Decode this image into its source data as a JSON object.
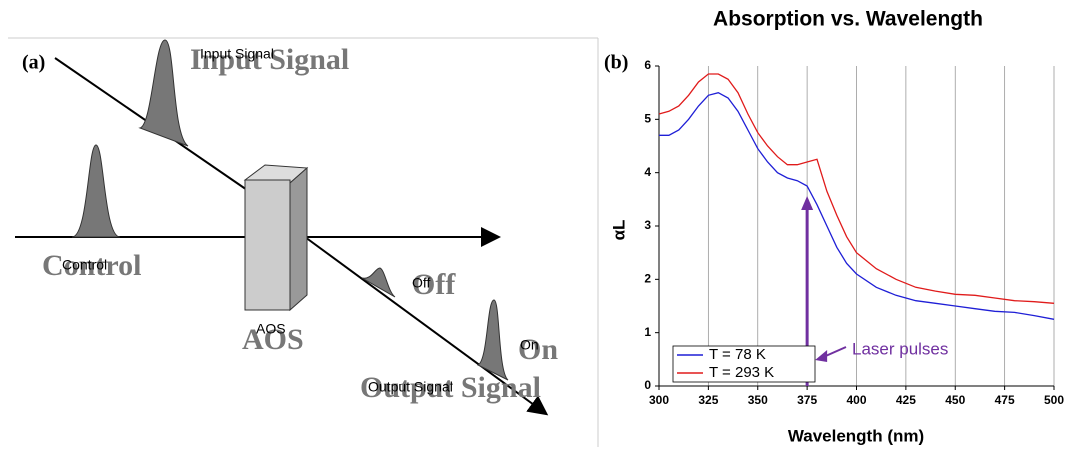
{
  "panel_a": {
    "label": "(a)",
    "input": "Input Signal",
    "control": "Control",
    "device": "AOS",
    "off": "Off",
    "on": "On",
    "output": "Output Signal"
  },
  "chart_data": {
    "type": "line",
    "panel_label": "(b)",
    "title": "Absorption vs. Wavelength",
    "x_label": "Wavelength (nm)",
    "y_label": "αL",
    "x": [
      300,
      305,
      310,
      315,
      320,
      325,
      330,
      335,
      340,
      345,
      350,
      355,
      360,
      365,
      370,
      375,
      380,
      385,
      390,
      395,
      400,
      410,
      420,
      430,
      440,
      450,
      460,
      470,
      480,
      490,
      500
    ],
    "series": [
      {
        "name": "T = 78 K",
        "color": "#1f1fd6",
        "values": [
          4.7,
          4.7,
          4.8,
          5.0,
          5.25,
          5.45,
          5.5,
          5.4,
          5.15,
          4.8,
          4.45,
          4.2,
          4.0,
          3.9,
          3.85,
          3.75,
          3.4,
          3.0,
          2.6,
          2.3,
          2.1,
          1.85,
          1.7,
          1.6,
          1.55,
          1.5,
          1.45,
          1.4,
          1.38,
          1.32,
          1.25
        ]
      },
      {
        "name": "T = 293 K",
        "color": "#e01b1b",
        "values": [
          5.1,
          5.15,
          5.25,
          5.45,
          5.7,
          5.85,
          5.85,
          5.75,
          5.5,
          5.1,
          4.75,
          4.5,
          4.3,
          4.15,
          4.15,
          4.2,
          4.25,
          3.65,
          3.2,
          2.8,
          2.5,
          2.2,
          2.0,
          1.85,
          1.78,
          1.72,
          1.7,
          1.65,
          1.6,
          1.58,
          1.55
        ]
      }
    ],
    "xlim": [
      300,
      500
    ],
    "ylim": [
      0,
      6
    ],
    "xticks": [
      300,
      325,
      350,
      375,
      400,
      425,
      450,
      475,
      500
    ],
    "yticks": [
      0,
      1,
      2,
      3,
      4,
      5,
      6
    ],
    "grid": true,
    "legend": "lower-left",
    "annotation": {
      "text": "Laser pulses",
      "x": 375,
      "color": "#7030a0"
    }
  }
}
